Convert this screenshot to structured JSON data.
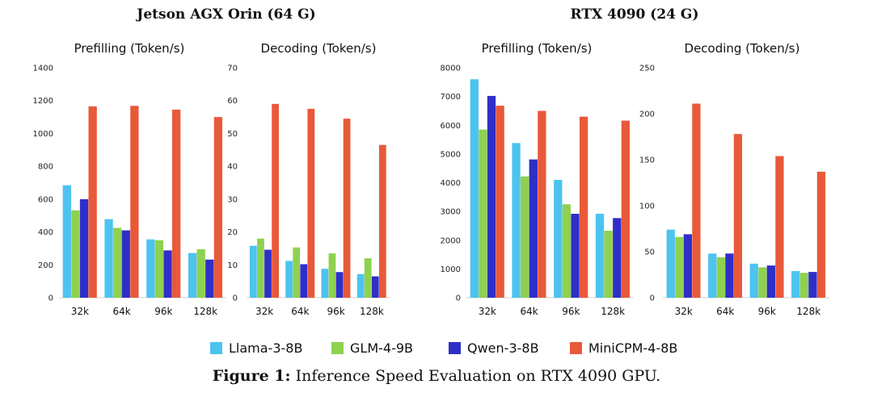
{
  "groups": [
    {
      "title": "Jetson AGX Orin (64 G)"
    },
    {
      "title": "RTX 4090 (24 G)"
    }
  ],
  "series_colors": [
    "#4DC3F0",
    "#8FD14F",
    "#2F2FC8",
    "#E8593A"
  ],
  "legend": [
    "Llama-3-8B",
    "GLM-4-9B",
    "Qwen-3-8B",
    "MiniCPM-4-8B"
  ],
  "caption": {
    "label": "Figure 1:",
    "text": " Inference Speed Evaluation on RTX 4090 GPU."
  },
  "chart_data": [
    {
      "type": "bar",
      "title": "Prefilling (Token/s)",
      "categories": [
        "32k",
        "64k",
        "96k",
        "128k"
      ],
      "ylim": [
        0,
        1400
      ],
      "yticks": [
        0,
        200,
        400,
        600,
        800,
        1000,
        1200,
        1400
      ],
      "legend": "bottom",
      "series": [
        {
          "name": "Llama-3-8B",
          "values": [
            685,
            478,
            355,
            272
          ]
        },
        {
          "name": "GLM-4-9B",
          "values": [
            532,
            425,
            350,
            295
          ]
        },
        {
          "name": "Qwen-3-8B",
          "values": [
            600,
            410,
            288,
            232
          ]
        },
        {
          "name": "MiniCPM-4-8B",
          "values": [
            1165,
            1168,
            1145,
            1100
          ]
        }
      ]
    },
    {
      "type": "bar",
      "title": "Decoding (Token/s)",
      "categories": [
        "32k",
        "64k",
        "96k",
        "128k"
      ],
      "ylim": [
        0,
        70
      ],
      "yticks": [
        0,
        10,
        20,
        30,
        40,
        50,
        60,
        70
      ],
      "legend": "bottom",
      "series": [
        {
          "name": "Llama-3-8B",
          "values": [
            15.8,
            11.2,
            8.8,
            7.2
          ]
        },
        {
          "name": "GLM-4-9B",
          "values": [
            18.0,
            15.3,
            13.5,
            12.0
          ]
        },
        {
          "name": "Qwen-3-8B",
          "values": [
            14.6,
            10.2,
            7.8,
            6.5
          ]
        },
        {
          "name": "MiniCPM-4-8B",
          "values": [
            59.0,
            57.5,
            54.5,
            46.5
          ]
        }
      ]
    },
    {
      "type": "bar",
      "title": "Prefilling (Token/s)",
      "categories": [
        "32k",
        "64k",
        "96k",
        "128k"
      ],
      "ylim": [
        0,
        8000
      ],
      "yticks": [
        0,
        1000,
        2000,
        3000,
        4000,
        5000,
        6000,
        7000,
        8000
      ],
      "legend": "bottom",
      "series": [
        {
          "name": "Llama-3-8B",
          "values": [
            7600,
            5380,
            4100,
            2920
          ]
        },
        {
          "name": "GLM-4-9B",
          "values": [
            5850,
            4220,
            3250,
            2330
          ]
        },
        {
          "name": "Qwen-3-8B",
          "values": [
            7020,
            4810,
            2920,
            2770
          ]
        },
        {
          "name": "MiniCPM-4-8B",
          "values": [
            6680,
            6500,
            6300,
            6160
          ]
        }
      ]
    },
    {
      "type": "bar",
      "title": "Decoding (Token/s)",
      "categories": [
        "32k",
        "64k",
        "96k",
        "128k"
      ],
      "ylim": [
        0,
        250
      ],
      "yticks": [
        0,
        50,
        100,
        150,
        200,
        250
      ],
      "legend": "bottom",
      "series": [
        {
          "name": "Llama-3-8B",
          "values": [
            74,
            48,
            37,
            29
          ]
        },
        {
          "name": "GLM-4-9B",
          "values": [
            66,
            44,
            33,
            27
          ]
        },
        {
          "name": "Qwen-3-8B",
          "values": [
            69,
            48,
            35,
            28
          ]
        },
        {
          "name": "MiniCPM-4-8B",
          "values": [
            211,
            178,
            154,
            137
          ]
        }
      ]
    }
  ]
}
